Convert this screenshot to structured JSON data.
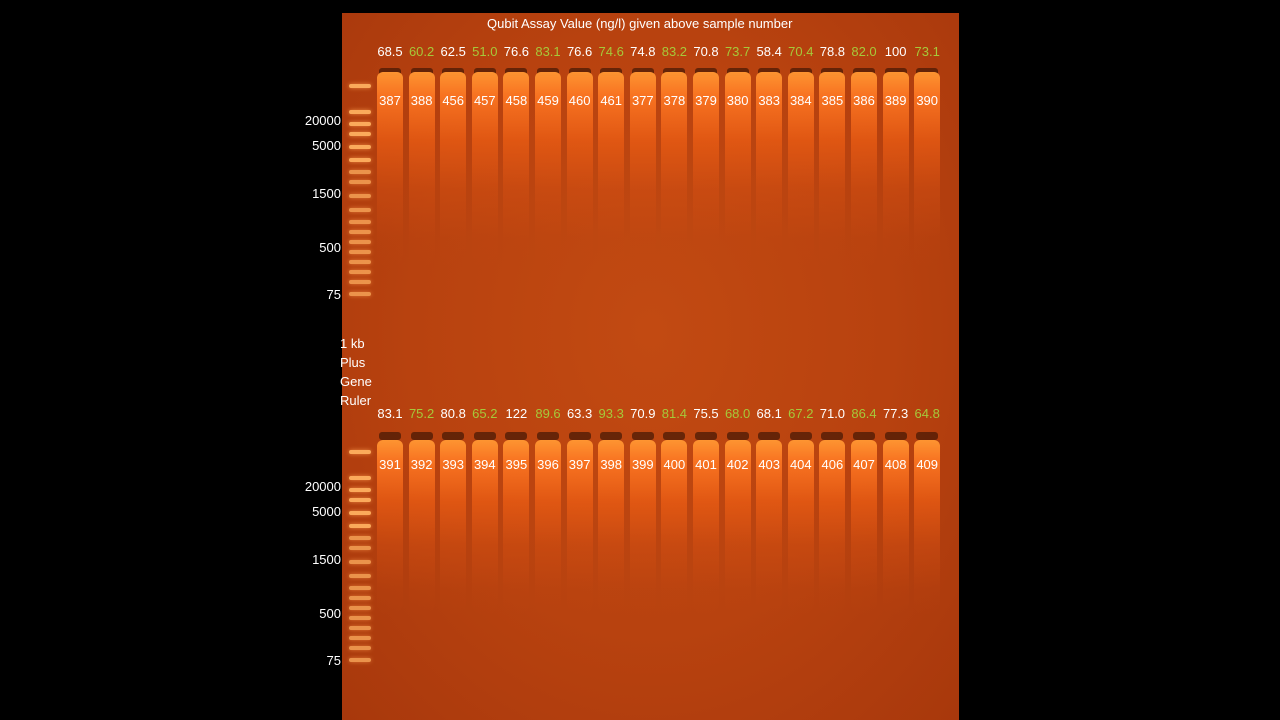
{
  "title": "Qubit Assay Value (ng/l) given above sample number",
  "ladder_name_lines": [
    "1 kb",
    "Plus",
    "Gene",
    "Ruler"
  ],
  "ladder_markers": [
    "20000",
    "5000",
    "1500",
    "500",
    "75"
  ],
  "colors": {
    "white": "#ffffff",
    "green": "#a6c83a",
    "gel": "#b8420f"
  },
  "top_row": {
    "qubit": [
      {
        "v": "68.5",
        "c": "white"
      },
      {
        "v": "60.2",
        "c": "green"
      },
      {
        "v": "62.5",
        "c": "white"
      },
      {
        "v": "51.0",
        "c": "green"
      },
      {
        "v": "76.6",
        "c": "white"
      },
      {
        "v": "83.1",
        "c": "green"
      },
      {
        "v": "76.6",
        "c": "white"
      },
      {
        "v": "74.6",
        "c": "green"
      },
      {
        "v": "74.8",
        "c": "white"
      },
      {
        "v": "83.2",
        "c": "green"
      },
      {
        "v": "70.8",
        "c": "white"
      },
      {
        "v": "73.7",
        "c": "green"
      },
      {
        "v": "58.4",
        "c": "white"
      },
      {
        "v": "70.4",
        "c": "green"
      },
      {
        "v": "78.8",
        "c": "white"
      },
      {
        "v": "82.0",
        "c": "green"
      },
      {
        "v": "100",
        "c": "white"
      },
      {
        "v": "73.1",
        "c": "green"
      }
    ],
    "samples": [
      "387",
      "388",
      "456",
      "457",
      "458",
      "459",
      "460",
      "461",
      "377",
      "378",
      "379",
      "380",
      "383",
      "384",
      "385",
      "386",
      "389",
      "390"
    ]
  },
  "bottom_row": {
    "qubit": [
      {
        "v": "83.1",
        "c": "white"
      },
      {
        "v": "75.2",
        "c": "green"
      },
      {
        "v": "80.8",
        "c": "white"
      },
      {
        "v": "65.2",
        "c": "green"
      },
      {
        "v": "122",
        "c": "white"
      },
      {
        "v": "89.6",
        "c": "green"
      },
      {
        "v": "63.3",
        "c": "white"
      },
      {
        "v": "93.3",
        "c": "green"
      },
      {
        "v": "70.9",
        "c": "white"
      },
      {
        "v": "81.4",
        "c": "green"
      },
      {
        "v": "75.5",
        "c": "white"
      },
      {
        "v": "68.0",
        "c": "green"
      },
      {
        "v": "68.1",
        "c": "white"
      },
      {
        "v": "67.2",
        "c": "green"
      },
      {
        "v": "71.0",
        "c": "white"
      },
      {
        "v": "86.4",
        "c": "green"
      },
      {
        "v": "77.3",
        "c": "white"
      },
      {
        "v": "64.8",
        "c": "green"
      }
    ],
    "samples": [
      "391",
      "392",
      "393",
      "394",
      "395",
      "396",
      "397",
      "398",
      "399",
      "400",
      "401",
      "402",
      "403",
      "404",
      "406",
      "407",
      "408",
      "409"
    ]
  }
}
